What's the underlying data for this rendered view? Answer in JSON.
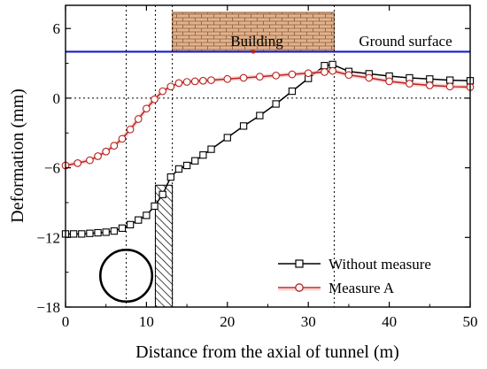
{
  "chart_data": {
    "type": "line",
    "xlabel": "Distance from the axial of tunnel (m)",
    "ylabel": "Deformation (mm)",
    "xlim": [
      0,
      50
    ],
    "ylim": [
      -18,
      8
    ],
    "xticks": [
      0,
      10,
      20,
      30,
      40,
      50
    ],
    "yticks": [
      -18,
      -12,
      -6,
      0,
      6
    ],
    "ytick_labels": [
      "−18",
      "−12",
      "−6",
      "0",
      "6"
    ],
    "ground_surface_y": 4,
    "annotations": {
      "building": "Building",
      "ground": "Ground surface"
    },
    "building_extent_x": [
      13.2,
      33.2
    ],
    "hatched_zone_x": [
      11.1,
      13.2
    ],
    "dotted_vertical_x": [
      7.5,
      11.1,
      13.2,
      33.2
    ],
    "dotted_horizontal_y": 0,
    "tunnel_center": [
      7.5,
      -15.3
    ],
    "tunnel_radius": 3.2,
    "legend_position": "bottom-right",
    "series": [
      {
        "name": "Without measure",
        "color": "#000000",
        "marker": "square",
        "x": [
          0,
          1,
          2,
          3,
          4,
          5,
          6,
          7,
          8,
          9,
          10,
          11,
          12,
          13,
          14,
          15,
          16,
          17,
          18,
          20,
          22,
          24,
          26,
          28,
          30,
          32,
          33,
          35,
          37.5,
          40,
          42.5,
          45,
          47.5,
          50
        ],
        "y": [
          -11.7,
          -11.7,
          -11.7,
          -11.65,
          -11.6,
          -11.55,
          -11.45,
          -11.2,
          -10.9,
          -10.5,
          -10.1,
          -9.3,
          -8.3,
          -6.8,
          -6.1,
          -5.8,
          -5.4,
          -4.9,
          -4.4,
          -3.4,
          -2.4,
          -1.5,
          -0.5,
          0.6,
          1.7,
          2.8,
          2.9,
          2.3,
          2.1,
          1.9,
          1.75,
          1.65,
          1.55,
          1.5
        ]
      },
      {
        "name": "Measure A",
        "color": "#b8211d",
        "marker": "circle",
        "x": [
          0,
          1.5,
          3,
          4,
          5,
          6,
          7,
          8,
          9,
          10,
          11,
          12,
          13,
          14,
          15,
          16,
          17,
          18,
          20,
          22,
          24,
          26,
          28,
          30,
          32,
          33,
          35,
          37.5,
          40,
          42.5,
          45,
          47.5,
          50
        ],
        "y": [
          -5.8,
          -5.6,
          -5.35,
          -5.0,
          -4.6,
          -4.1,
          -3.5,
          -2.7,
          -1.8,
          -0.9,
          -0.1,
          0.6,
          1.0,
          1.3,
          1.4,
          1.45,
          1.5,
          1.55,
          1.65,
          1.75,
          1.85,
          1.95,
          2.05,
          2.15,
          2.25,
          2.35,
          2.0,
          1.75,
          1.45,
          1.25,
          1.1,
          1.0,
          0.95
        ]
      }
    ]
  }
}
